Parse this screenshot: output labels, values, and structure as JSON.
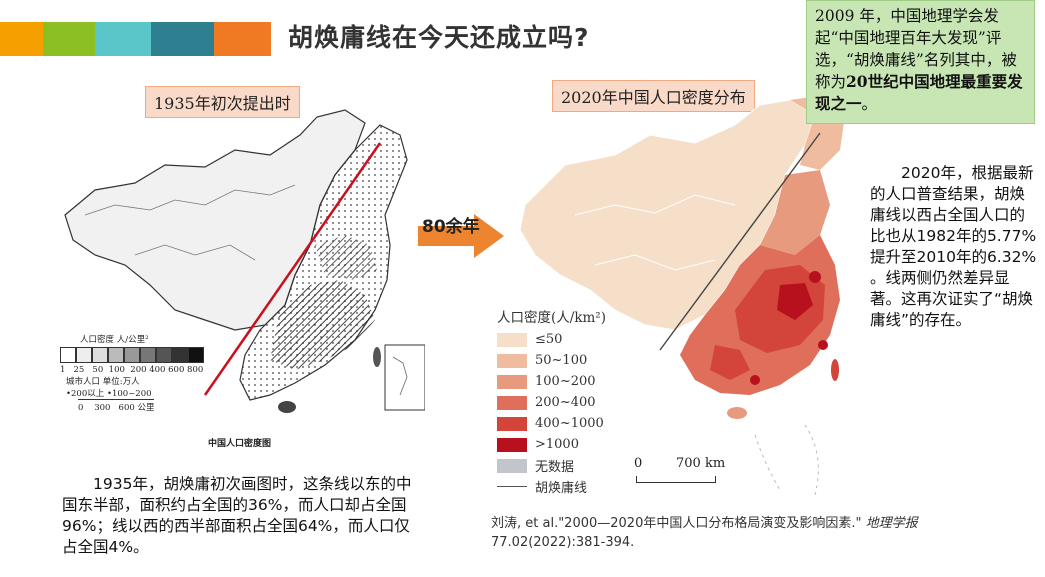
{
  "title": "胡焕庸线在今天还成立吗?",
  "accent_colors": [
    "#f5a000",
    "#8cbf24",
    "#5ac6c9",
    "#2e7f8f",
    "#f07a23"
  ],
  "left_map": {
    "label": "1935年初次提出时",
    "legend_title": "人口密度   人/公里²",
    "legend_ticks": "1   25   50  100  200 400 600 800",
    "city_label": "城市人口  单位:万人",
    "city_items": "•200以上  •100~200",
    "scale": "0    300   600 公里",
    "map_caption": "中国人口密度图"
  },
  "arrow_label": "80余年",
  "right_map": {
    "label": "2020年中国人口密度分布",
    "legend_title": "人口密度(人/km²)",
    "legend_items": [
      {
        "label": "≤50",
        "color": "#f5dfc9"
      },
      {
        "label": "50~100",
        "color": "#efbca0"
      },
      {
        "label": "100~200",
        "color": "#e89a7e"
      },
      {
        "label": "200~400",
        "color": "#df6f5a"
      },
      {
        "label": "400~1000",
        "color": "#d3443a"
      },
      {
        "label": ">1000",
        "color": "#b8111e"
      },
      {
        "label": "无数据",
        "color": "#c3c5cc"
      }
    ],
    "line_legend": "胡焕庸线",
    "scale_zero": "0",
    "scale_dist": "700 km"
  },
  "note": {
    "line1": "2009 年，中国地理学会发起“中国地理百年大发现”评选，“胡焕庸线”名列其中，被称为",
    "bold": "20世纪中国地理最重要发现之一",
    "end": "。"
  },
  "right_para": "2020年，根据最新的人口普查结果，胡焕庸线以西占全国人口的比也从1982年的5.77%提升至2010年的6.32% 。线两侧仍然差异显著。这再次证实了“胡焕庸线”的存在。",
  "bottom_para": "1935年，胡焕庸初次画图时，这条线以东的中国东半部，面积约占全国的36%，而人口却占全国96%；线以西的西半部面积占全国64%，而人口仅占全国4%。",
  "citation_line1": "刘涛, et al.\"2000—2020年中国人口分布格局演变及影响因素.\"",
  "citation_journal": "地理学报",
  "citation_line2": "77.02(2022):381-394."
}
